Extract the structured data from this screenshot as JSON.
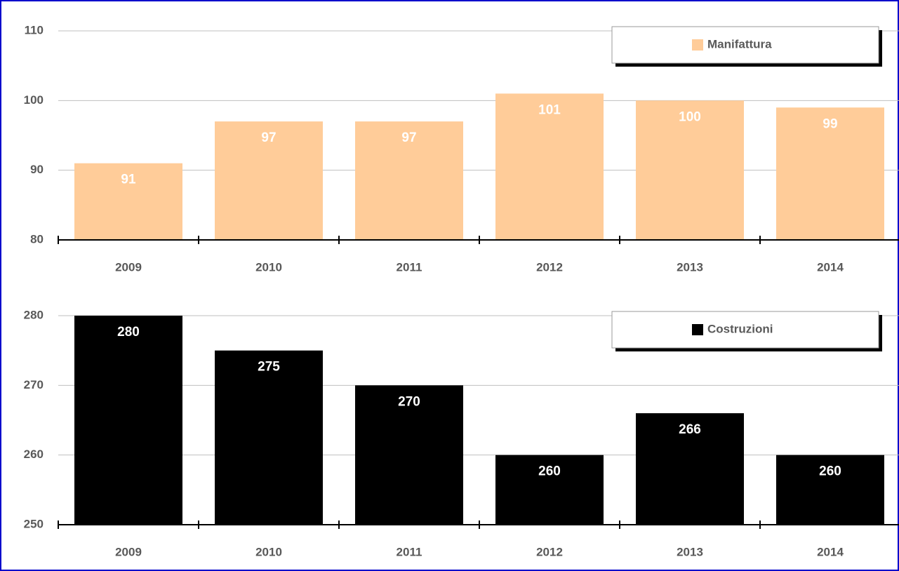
{
  "chart_data": [
    {
      "type": "bar",
      "categories": [
        "2009",
        "2010",
        "2011",
        "2012",
        "2013",
        "2014"
      ],
      "series": [
        {
          "name": "Manifattura",
          "color": "#ffcc99",
          "values": [
            91,
            97,
            97,
            101,
            100,
            99
          ]
        }
      ],
      "ylim": [
        80,
        110
      ],
      "yticks": [
        80,
        90,
        100,
        110
      ],
      "grid": true,
      "legend": "upper right"
    },
    {
      "type": "bar",
      "categories": [
        "2009",
        "2010",
        "2011",
        "2012",
        "2013",
        "2014"
      ],
      "series": [
        {
          "name": "Costruzioni",
          "color": "#000000",
          "values": [
            280,
            275,
            270,
            260,
            266,
            260
          ]
        }
      ],
      "ylim": [
        250,
        280
      ],
      "yticks": [
        250,
        260,
        270,
        280
      ],
      "grid": true,
      "legend": "upper right"
    }
  ]
}
